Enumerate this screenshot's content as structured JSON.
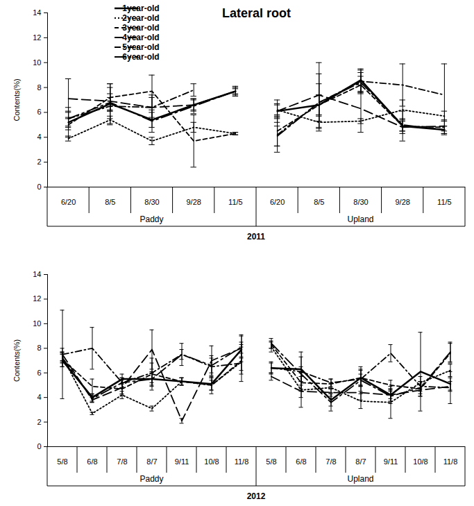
{
  "chart_data": [
    {
      "type": "line",
      "title": "Lateral root",
      "ylabel": "Contents(%)",
      "xlabel": "2011",
      "ylim": [
        0,
        14
      ],
      "yticks": [
        0,
        2,
        4,
        6,
        8,
        10,
        12,
        14
      ],
      "grid": false,
      "legend": "top-left",
      "groups": [
        {
          "name": "Paddy",
          "categories": [
            "6/20",
            "8/5",
            "8/30",
            "9/28",
            "11/5"
          ]
        },
        {
          "name": "Upland",
          "categories": [
            "6/20",
            "8/5",
            "8/30",
            "9/28",
            "11/5"
          ]
        }
      ],
      "series": [
        {
          "name": "1year-old",
          "color": "#000000",
          "line_style": "solid",
          "values": [
            [
              5.2,
              6.7,
              5.4,
              6.6,
              7.7
            ],
            [
              6.1,
              6.6,
              8.6,
              4.9,
              4.6
            ]
          ],
          "errors": [
            [
              0.4,
              0.5,
              0.6,
              0.4,
              0.2
            ],
            [
              0.6,
              0.8,
              0.9,
              0.4,
              0.3
            ]
          ]
        },
        {
          "name": "2year-old",
          "color": "#000000",
          "line_style": "dotted",
          "values": [
            [
              3.9,
              5.4,
              3.7,
              4.8,
              4.3
            ],
            [
              6.2,
              5.2,
              5.3,
              6.2,
              5.7
            ]
          ],
          "errors": [
            [
              0.2,
              0.3,
              0.3,
              0.4,
              0.1
            ],
            [
              0.4,
              0.5,
              0.2,
              0.8,
              0.4
            ]
          ]
        },
        {
          "name": "3year-old",
          "color": "#000000",
          "line_style": "dashed",
          "values": [
            [
              5.0,
              7.2,
              7.7,
              3.7,
              4.3
            ],
            [
              4.5,
              6.6,
              8.2,
              4.9,
              4.8
            ]
          ],
          "errors": [
            [
              1.0,
              1.1,
              1.3,
              2.1,
              0.1
            ],
            [
              1.2,
              0.8,
              0.7,
              1.2,
              0.6
            ]
          ]
        },
        {
          "name": "4year-old",
          "color": "#000000",
          "line_style": "longdash",
          "values": [
            [
              7.1,
              6.9,
              6.4,
              6.6,
              7.7
            ],
            [
              6.1,
              7.4,
              6.3,
              4.8,
              4.9
            ]
          ],
          "errors": [
            [
              1.6,
              1.4,
              1.0,
              0.5,
              0.4
            ],
            [
              0.9,
              2.6,
              1.9,
              0.5,
              0.4
            ]
          ]
        },
        {
          "name": "5year-old",
          "color": "#000000",
          "line_style": "dashdot",
          "values": [
            [
              5.5,
              6.5,
              6.4,
              7.8,
              null
            ],
            [
              4.2,
              6.8,
              8.5,
              8.2,
              7.4
            ]
          ],
          "errors": [
            [
              0.9,
              1.5,
              0.8,
              0.5,
              null
            ],
            [
              1.4,
              2.3,
              0.9,
              1.7,
              2.5
            ]
          ]
        },
        {
          "name": "6year-old",
          "color": "#000000",
          "line_style": "longdashdot",
          "values": [
            [
              5.5,
              6.8,
              5.3,
              6.5,
              7.7
            ],
            [
              4.1,
              6.8,
              8.4,
              5.0,
              4.6
            ]
          ],
          "errors": [
            [
              0.6,
              0.7,
              0.9,
              0.6,
              0.3
            ],
            [
              0.8,
              1.5,
              0.8,
              0.5,
              0.3
            ]
          ]
        }
      ]
    },
    {
      "type": "line",
      "ylabel": "Contents(%)",
      "xlabel": "2012",
      "ylim": [
        0,
        14
      ],
      "yticks": [
        0,
        2,
        4,
        6,
        8,
        10,
        12,
        14
      ],
      "grid": false,
      "groups": [
        {
          "name": "Paddy",
          "categories": [
            "5/8",
            "6/8",
            "7/8",
            "8/7",
            "9/11",
            "10/8",
            "11/8"
          ]
        },
        {
          "name": "Upland",
          "categories": [
            "5/8",
            "6/8",
            "7/8",
            "8/7",
            "9/11",
            "10/8",
            "11/8"
          ]
        }
      ],
      "series": [
        {
          "name": "1year-old",
          "color": "#000000",
          "line_style": "solid",
          "values": [
            [
              7.0,
              4.0,
              5.5,
              5.5,
              5.3,
              5.1,
              7.9
            ],
            [
              6.4,
              6.3,
              3.8,
              5.6,
              4.2,
              6.1,
              5.1
            ]
          ],
          "errors": [
            [
              0.5,
              0.3,
              0.4,
              0.5,
              0.3,
              0.5,
              0.6
            ],
            [
              0.4,
              1.0,
              0.5,
              0.6,
              0.5,
              3.2,
              0.5
            ]
          ]
        },
        {
          "name": "2year-old",
          "color": "#000000",
          "line_style": "dotted",
          "values": [
            [
              7.3,
              2.7,
              4.2,
              3.1,
              5.3,
              5.0,
              6.9
            ],
            [
              8.1,
              4.6,
              4.8,
              3.7,
              3.6,
              5.2,
              6.2
            ]
          ],
          "errors": [
            [
              0.4,
              0.1,
              0.3,
              0.2,
              0.3,
              0.4,
              0.7
            ],
            [
              0.4,
              1.4,
              0.4,
              0.6,
              1.3,
              0.5,
              0.5
            ]
          ]
        },
        {
          "name": "3year-old",
          "color": "#000000",
          "line_style": "dashed",
          "values": [
            [
              7.1,
              4.9,
              4.7,
              5.9,
              5.3,
              5.0,
              7.0
            ],
            [
              8.3,
              5.2,
              5.1,
              5.6,
              5.0,
              4.7,
              7.6
            ]
          ],
          "errors": [
            [
              0.6,
              0.6,
              0.4,
              1.3,
              0.3,
              0.7,
              1.1
            ],
            [
              0.3,
              0.5,
              0.4,
              0.7,
              0.4,
              0.6,
              0.8
            ]
          ]
        },
        {
          "name": "4year-old",
          "color": "#000000",
          "line_style": "longdash",
          "values": [
            [
              7.5,
              3.8,
              4.8,
              7.9,
              2.1,
              7.0,
              8.0
            ],
            [
              5.7,
              4.5,
              4.4,
              4.4,
              4.2,
              4.6,
              4.9
            ]
          ],
          "errors": [
            [
              3.6,
              0.2,
              0.6,
              1.6,
              0.2,
              1.2,
              1.1
            ],
            [
              0.3,
              0.5,
              0.3,
              0.6,
              0.3,
              0.5,
              0.4
            ]
          ]
        },
        {
          "name": "5year-old",
          "color": "#000000",
          "line_style": "dashdot",
          "values": [
            [
              7.5,
              8.0,
              5.2,
              6.0,
              7.5,
              6.5,
              6.8
            ],
            [
              6.4,
              6.1,
              5.2,
              5.5,
              7.6,
              4.9,
              4.8
            ]
          ],
          "errors": [
            [
              0.5,
              1.7,
              0.4,
              0.8,
              0.9,
              0.9,
              1.5
            ],
            [
              0.5,
              1.6,
              0.3,
              1.0,
              0.7,
              0.4,
              1.3
            ]
          ]
        },
        {
          "name": "6year-old",
          "color": "#000000",
          "line_style": "longdashdot",
          "values": [
            [
              7.2,
              3.9,
              5.2,
              5.5,
              7.5,
              6.6,
              8.1
            ],
            [
              8.4,
              5.9,
              3.6,
              5.4,
              4.1,
              4.8,
              7.7
            ]
          ],
          "errors": [
            [
              0.4,
              0.3,
              0.4,
              0.6,
              0.4,
              0.6,
              0.9
            ],
            [
              0.4,
              0.6,
              0.7,
              0.5,
              0.6,
              0.5,
              0.8
            ]
          ]
        }
      ]
    }
  ]
}
